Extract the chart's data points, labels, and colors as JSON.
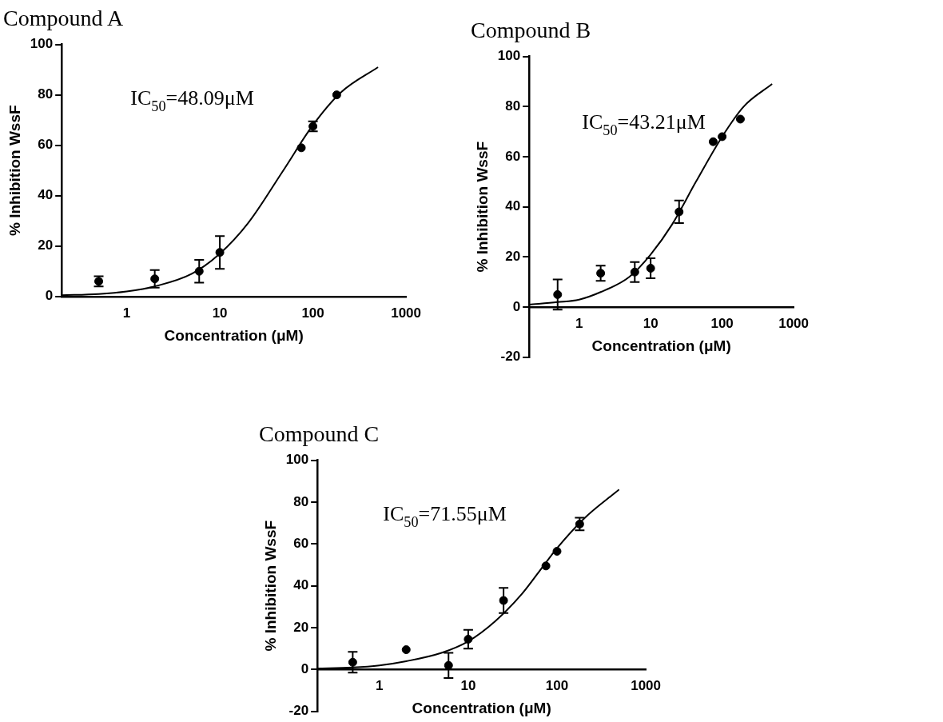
{
  "chart_data": [
    {
      "type": "scatter",
      "title": "Compound A",
      "xlabel": "Concentration (μM)",
      "ylabel": "% Inhibition WssF",
      "annotations": [
        "IC$_{50}$=48.09μM"
      ],
      "log": "x",
      "xlim": [
        0.2,
        1000
      ],
      "xticks": [
        1,
        10,
        100,
        1000
      ],
      "ylim": [
        0,
        100
      ],
      "yticks": [
        0,
        20,
        40,
        60,
        80,
        100
      ],
      "grid": false,
      "line_style": "solid",
      "series": [
        {
          "type": "scatter",
          "marker": "circle",
          "color": "#000000",
          "x": [
            0.5,
            2,
            6,
            10,
            75,
            100,
            180
          ],
          "values": [
            6,
            7,
            10,
            17.5,
            59,
            67.5,
            80
          ],
          "errors": [
            2,
            3.5,
            4.5,
            6.5,
            null,
            2,
            null
          ]
        },
        {
          "type": "line",
          "marker": "none",
          "color": "#000000",
          "x": [
            0.2,
            0.5,
            1,
            2,
            5,
            10,
            20,
            48,
            100,
            200,
            500
          ],
          "values": [
            0.5,
            1,
            2,
            4,
            9,
            17,
            29,
            50,
            68,
            81,
            91
          ]
        }
      ]
    },
    {
      "type": "scatter",
      "title": "Compound B",
      "xlabel": "Concentration (μM)",
      "ylabel": "% Inhibition WssF",
      "annotations": [
        "IC$_{50}$=43.21μM"
      ],
      "log": "x",
      "xlim": [
        0.2,
        1000
      ],
      "xticks": [
        1,
        10,
        100,
        1000
      ],
      "ylim": [
        -20,
        100
      ],
      "yticks": [
        -20,
        0,
        20,
        40,
        60,
        80,
        100
      ],
      "grid": false,
      "line_style": "solid",
      "series": [
        {
          "type": "scatter",
          "marker": "circle",
          "color": "#000000",
          "x": [
            0.5,
            2,
            6,
            10,
            25,
            75,
            100,
            180
          ],
          "values": [
            5,
            13.5,
            14,
            15.5,
            38,
            66,
            68,
            75
          ],
          "errors": [
            6,
            3,
            4,
            4,
            4.5,
            null,
            null,
            null
          ]
        },
        {
          "type": "line",
          "marker": "none",
          "color": "#000000",
          "x": [
            0.2,
            0.5,
            1,
            2,
            5,
            10,
            20,
            43,
            100,
            200,
            500
          ],
          "values": [
            1,
            2,
            3,
            6,
            12,
            21,
            33,
            50,
            68,
            80,
            89
          ]
        }
      ]
    },
    {
      "type": "scatter",
      "title": "Compound C",
      "xlabel": "Concentration (μM)",
      "ylabel": "% Inhibition WssF",
      "annotations": [
        "IC$_{50}$=71.55μM"
      ],
      "log": "x",
      "xlim": [
        0.2,
        1000
      ],
      "xticks": [
        1,
        10,
        100,
        1000
      ],
      "ylim": [
        -20,
        100
      ],
      "yticks": [
        -20,
        0,
        20,
        40,
        60,
        80,
        100
      ],
      "grid": false,
      "line_style": "solid",
      "series": [
        {
          "type": "scatter",
          "marker": "circle",
          "color": "#000000",
          "x": [
            0.5,
            2,
            6,
            10,
            25,
            75,
            100,
            180
          ],
          "values": [
            3.5,
            9.5,
            2,
            14.5,
            33,
            49.5,
            56.5,
            69.5
          ],
          "errors": [
            5,
            null,
            6,
            4.5,
            6,
            null,
            null,
            3
          ]
        },
        {
          "type": "line",
          "marker": "none",
          "color": "#000000",
          "x": [
            0.2,
            0.5,
            1,
            2,
            5,
            10,
            20,
            40,
            71.55,
            100,
            200,
            500
          ],
          "values": [
            0.5,
            1,
            2,
            4,
            8,
            13.5,
            23,
            36,
            50,
            58,
            72,
            86
          ]
        }
      ]
    }
  ]
}
